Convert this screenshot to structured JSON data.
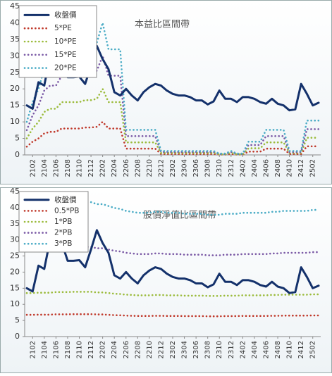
{
  "chart_data": [
    {
      "type": "line",
      "annotation": "本益比區間帶",
      "categories": [
        null,
        "2102",
        null,
        "2104",
        null,
        "2106",
        null,
        "2108",
        null,
        "2110",
        null,
        "2112",
        null,
        "2202",
        null,
        "2204",
        null,
        "2206",
        null,
        "2208",
        null,
        "2210",
        null,
        "2212",
        null,
        "2302",
        null,
        "2304",
        null,
        "2306",
        null,
        "2308",
        null,
        "2310",
        null,
        "2312",
        null,
        "2402",
        null,
        "2404",
        null,
        "2406",
        null,
        "2408",
        null,
        "2410",
        null,
        "2412",
        null,
        "2502",
        null
      ],
      "ylim": [
        0,
        45
      ],
      "yticks": [
        0,
        5,
        10,
        15,
        20,
        25,
        30,
        35,
        40,
        45
      ],
      "grid": false,
      "series": [
        {
          "name": "收盤價",
          "color": "#14316b",
          "values": [
            15,
            14,
            22,
            21,
            30,
            29.5,
            29,
            23.5,
            23.5,
            23.7,
            21.5,
            27,
            33,
            29,
            26,
            19,
            18,
            20,
            18,
            16.5,
            19,
            20.5,
            21.5,
            21,
            19.5,
            18.5,
            18,
            18,
            17.5,
            16.5,
            16.5,
            15.3,
            16.2,
            19.5,
            17,
            17,
            16,
            17.5,
            17.5,
            17,
            16,
            15.5,
            17,
            15.5,
            15,
            13.5,
            13.8,
            21.5,
            18.5,
            15,
            15.8
          ]
        },
        {
          "name": "5*PE",
          "color": "#c0392b",
          "values": [
            2.5,
            4,
            5,
            6.5,
            7,
            7,
            8,
            8,
            8,
            8,
            8.3,
            8.3,
            8.5,
            10,
            8,
            8,
            8,
            1.9,
            1.9,
            1.9,
            1.9,
            1.9,
            1.9,
            0.3,
            0.3,
            0.3,
            0.3,
            0.3,
            0.3,
            0.3,
            0.3,
            0.3,
            0.3,
            0.1,
            0.1,
            0.3,
            0.1,
            0.1,
            1,
            1,
            1,
            1.9,
            1.9,
            1.9,
            1.9,
            0.3,
            0.3,
            0.3,
            2.6,
            2.6,
            2.6
          ]
        },
        {
          "name": "10*PE",
          "color": "#9bbb3b",
          "values": [
            5,
            8,
            10,
            13,
            14,
            14,
            16,
            16,
            16,
            16,
            16.6,
            16.6,
            17,
            20,
            16,
            16,
            16,
            3.8,
            3.8,
            3.8,
            3.8,
            3.8,
            3.8,
            0.6,
            0.6,
            0.6,
            0.6,
            0.6,
            0.6,
            0.6,
            0.6,
            0.6,
            0.6,
            0.2,
            0.2,
            0.6,
            0.2,
            0.2,
            2,
            2,
            2,
            3.8,
            3.8,
            3.8,
            3.8,
            0.6,
            0.6,
            0.6,
            5.2,
            5.2,
            5.2
          ]
        },
        {
          "name": "15*PE",
          "color": "#7b5aa6",
          "values": [
            7.5,
            12,
            15,
            19.5,
            21,
            21,
            24,
            24,
            24,
            24,
            24.9,
            24.9,
            25.5,
            30,
            24,
            24,
            24,
            5.7,
            5.7,
            5.7,
            5.7,
            5.7,
            5.7,
            0.9,
            0.9,
            0.9,
            0.9,
            0.9,
            0.9,
            0.9,
            0.9,
            0.9,
            0.9,
            0.3,
            0.3,
            0.9,
            0.3,
            0.3,
            3,
            3,
            3,
            5.7,
            5.7,
            5.7,
            5.7,
            0.9,
            0.9,
            0.9,
            7.8,
            7.8,
            7.8
          ]
        },
        {
          "name": "20*PE",
          "color": "#4bacc6",
          "values": [
            10,
            16,
            20,
            26,
            28,
            28,
            32,
            32,
            32,
            32,
            33.2,
            33.2,
            34,
            40,
            32,
            32,
            32,
            7.6,
            7.6,
            7.6,
            7.6,
            7.6,
            7.6,
            1.2,
            1.2,
            1.2,
            1.2,
            1.2,
            1.2,
            1.2,
            1.2,
            1.2,
            1.2,
            0.4,
            0.4,
            1.2,
            0.4,
            0.4,
            4,
            4,
            4,
            7.6,
            7.6,
            7.6,
            7.6,
            1.2,
            1.2,
            1.2,
            10.4,
            10.4,
            10.4
          ]
        }
      ]
    },
    {
      "type": "line",
      "annotation": "股價淨值比區間帶",
      "categories": [
        null,
        "2102",
        null,
        "2104",
        null,
        "2106",
        null,
        "2108",
        null,
        "2110",
        null,
        "2112",
        null,
        "2202",
        null,
        "2204",
        null,
        "2206",
        null,
        "2208",
        null,
        "2210",
        null,
        "2212",
        null,
        "2302",
        null,
        "2304",
        null,
        "2306",
        null,
        "2308",
        null,
        "2310",
        null,
        "2312",
        null,
        "2402",
        null,
        "2404",
        null,
        "2406",
        null,
        "2408",
        null,
        "2410",
        null,
        "2412",
        null,
        "2502",
        null
      ],
      "ylim": [
        0,
        45
      ],
      "yticks": [
        0,
        5,
        10,
        15,
        20,
        25,
        30,
        35,
        40,
        45
      ],
      "grid": false,
      "series": [
        {
          "name": "收盤價",
          "color": "#14316b",
          "values": [
            15,
            14,
            22,
            21,
            30,
            29.5,
            29,
            23.5,
            23.5,
            23.7,
            21.5,
            27,
            33,
            29,
            26,
            19,
            18,
            20,
            18,
            16.5,
            19,
            20.5,
            21.5,
            21,
            19.5,
            18.5,
            18,
            18,
            17.5,
            16.5,
            16.5,
            15.3,
            16.2,
            19.5,
            17,
            17,
            16,
            17.5,
            17.5,
            17,
            16,
            15.5,
            17,
            15.5,
            15,
            13.5,
            13.8,
            21.5,
            18.5,
            15,
            15.8
          ]
        },
        {
          "name": "0.5*PB",
          "color": "#c0392b",
          "values": [
            6.75,
            6.75,
            6.8,
            6.8,
            6.8,
            6.9,
            6.9,
            6.9,
            6.95,
            6.95,
            6.95,
            6.95,
            6.85,
            6.85,
            6.75,
            6.65,
            6.6,
            6.5,
            6.45,
            6.4,
            6.4,
            6.4,
            6.45,
            6.45,
            6.4,
            6.4,
            6.4,
            6.35,
            6.35,
            6.35,
            6.35,
            6.3,
            6.3,
            6.3,
            6.35,
            6.35,
            6.35,
            6.4,
            6.4,
            6.4,
            6.4,
            6.4,
            6.45,
            6.45,
            6.5,
            6.5,
            6.5,
            6.5,
            6.5,
            6.55,
            6.55
          ]
        },
        {
          "name": "1*PB",
          "color": "#9bbb3b",
          "values": [
            13.5,
            13.5,
            13.6,
            13.6,
            13.6,
            13.8,
            13.8,
            13.8,
            13.9,
            13.9,
            13.9,
            13.9,
            13.7,
            13.7,
            13.5,
            13.3,
            13.2,
            13,
            12.9,
            12.8,
            12.8,
            12.8,
            12.9,
            12.9,
            12.8,
            12.8,
            12.8,
            12.7,
            12.7,
            12.7,
            12.7,
            12.6,
            12.6,
            12.6,
            12.7,
            12.7,
            12.7,
            12.8,
            12.8,
            12.8,
            12.8,
            12.8,
            12.9,
            12.9,
            13,
            13,
            13,
            13,
            13,
            13.1,
            13.1
          ]
        },
        {
          "name": "2*PB",
          "color": "#7b5aa6",
          "values": [
            27,
            27,
            27.2,
            27.2,
            27.2,
            27.6,
            27.6,
            27.6,
            27.8,
            27.8,
            27.8,
            27.8,
            27.4,
            27.4,
            27,
            26.6,
            26.4,
            26,
            25.8,
            25.6,
            25.6,
            25.6,
            25.8,
            25.8,
            25.6,
            25.6,
            25.6,
            25.4,
            25.4,
            25.4,
            25.4,
            25.2,
            25.2,
            25.2,
            25.4,
            25.4,
            25.4,
            25.6,
            25.6,
            25.6,
            25.6,
            25.6,
            25.8,
            25.8,
            26,
            26,
            26,
            26,
            26,
            26.2,
            26.2
          ]
        },
        {
          "name": "3*PB",
          "color": "#4bacc6",
          "values": [
            40.5,
            40.5,
            40.8,
            40.8,
            40.8,
            41.4,
            41.4,
            41.4,
            41.7,
            41.7,
            41.7,
            41.7,
            41.1,
            41.1,
            40.5,
            39.9,
            39.6,
            39,
            38.7,
            38.4,
            38.4,
            38.4,
            38.7,
            38.7,
            38.4,
            38.4,
            38.4,
            38.1,
            38.1,
            38.1,
            38.1,
            37.8,
            37.8,
            37.8,
            38.1,
            38.1,
            38.1,
            38.4,
            38.4,
            38.4,
            38.4,
            38.4,
            38.7,
            38.7,
            39,
            39,
            39,
            39,
            39,
            39.3,
            39.3
          ]
        }
      ]
    }
  ]
}
